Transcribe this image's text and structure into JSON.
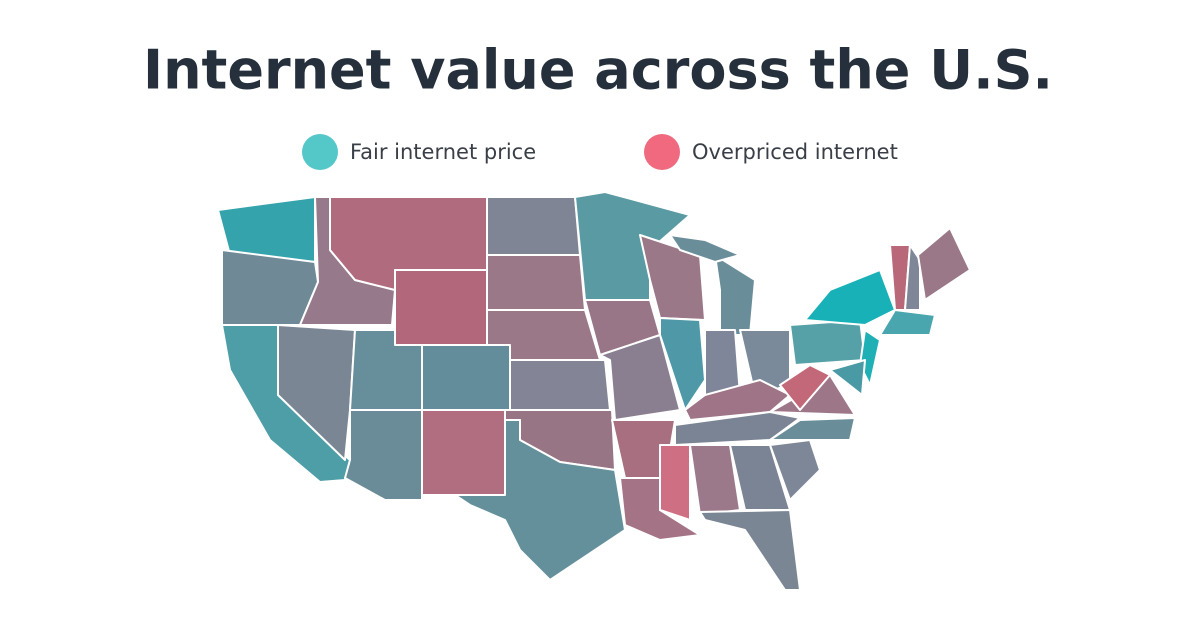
{
  "title": "Internet value across the U.S.",
  "legend": [
    {
      "name": "Fair internet price",
      "color": "#54c7c9"
    },
    {
      "name": "Overpriced internet",
      "color": "#f0697e"
    }
  ]
}
